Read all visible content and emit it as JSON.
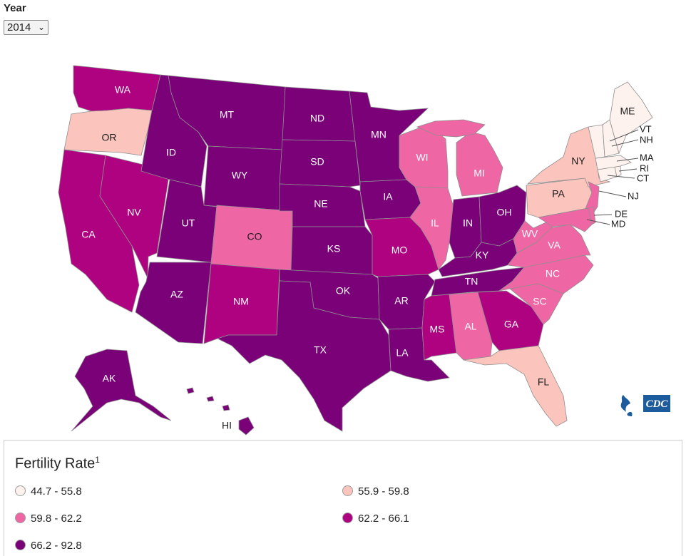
{
  "year_label": "Year",
  "year_selected": "2014",
  "legend": {
    "title": "Fertility Rate",
    "footnote": "1",
    "classes": [
      {
        "range": "44.7 - 55.8",
        "color": "#fdf2ee"
      },
      {
        "range": "55.9 - 59.8",
        "color": "#fbc4bd"
      },
      {
        "range": "59.8 - 62.2",
        "color": "#ef66a5"
      },
      {
        "range": "62.2 - 66.1",
        "color": "#ae0280"
      },
      {
        "range": "66.2 - 92.8",
        "color": "#7a0177"
      }
    ]
  },
  "states": {
    "WA": "WA",
    "OR": "OR",
    "CA": "CA",
    "NV": "NV",
    "ID": "ID",
    "MT": "MT",
    "WY": "WY",
    "UT": "UT",
    "AZ": "AZ",
    "CO": "CO",
    "NM": "NM",
    "ND": "ND",
    "SD": "SD",
    "NE": "NE",
    "KS": "KS",
    "OK": "OK",
    "TX": "TX",
    "MN": "MN",
    "IA": "IA",
    "MO": "MO",
    "AR": "AR",
    "LA": "LA",
    "WI": "WI",
    "IL": "IL",
    "MI": "MI",
    "IN": "IN",
    "OH": "OH",
    "KY": "KY",
    "TN": "TN",
    "MS": "MS",
    "AL": "AL",
    "GA": "GA",
    "FL": "FL",
    "SC": "SC",
    "NC": "NC",
    "VA": "VA",
    "WV": "WV",
    "PA": "PA",
    "NY": "NY",
    "NJ": "NJ",
    "DE": "DE",
    "MD": "MD",
    "CT": "CT",
    "RI": "RI",
    "MA": "MA",
    "VT": "VT",
    "NH": "NH",
    "ME": "ME",
    "AK": "AK",
    "HI": "HI"
  },
  "logo_text": "CDC"
}
